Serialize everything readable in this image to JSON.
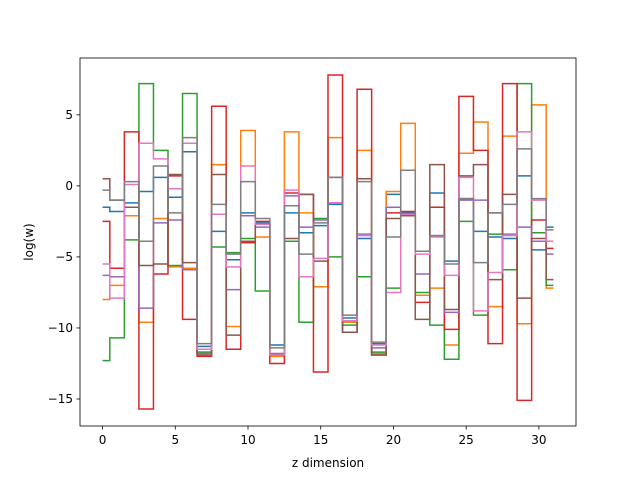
{
  "chart_data": {
    "type": "line",
    "drawstyle": "steps-mid",
    "title": "",
    "xlabel": "z dimension",
    "ylabel": "log(w)",
    "xlim": [
      -1.55,
      32.55
    ],
    "ylim": [
      -16.9,
      9.0
    ],
    "xticks": [
      0,
      5,
      10,
      15,
      20,
      25,
      30
    ],
    "yticks": [
      -15,
      -10,
      -5,
      0,
      5
    ],
    "grid": false,
    "x": [
      0,
      1,
      2,
      3,
      4,
      5,
      6,
      7,
      8,
      9,
      10,
      11,
      12,
      13,
      14,
      15,
      16,
      17,
      18,
      19,
      20,
      21,
      22,
      23,
      24,
      25,
      26,
      27,
      28,
      29,
      30,
      31
    ],
    "series": [
      {
        "color": "#1f77b4",
        "values": [
          -1.5,
          -1.8,
          -1.2,
          -0.4,
          0.6,
          -0.8,
          2.4,
          -11.3,
          -3.2,
          -5.2,
          -1.9,
          -2.6,
          -11.2,
          -1.9,
          -3.3,
          -2.8,
          -1.3,
          -9.3,
          -3.7,
          -11.1,
          -0.6,
          -1.9,
          -4.6,
          -0.5,
          -5.3,
          -0.9,
          -3.2,
          -3.6,
          -3.7,
          0.7,
          -4.5,
          -2.9
        ]
      },
      {
        "color": "#ff7f0e",
        "values": [
          -8.0,
          -7.0,
          -2.1,
          -9.6,
          -2.3,
          -5.7,
          -5.8,
          -11.7,
          1.5,
          -9.9,
          3.9,
          -3.6,
          -12.0,
          3.8,
          -1.9,
          -7.1,
          3.4,
          -9.6,
          2.5,
          -11.8,
          -0.4,
          4.4,
          -7.7,
          -7.2,
          -11.2,
          2.3,
          4.5,
          -8.5,
          3.5,
          -9.7,
          5.7,
          -7.2
        ]
      },
      {
        "color": "#2ca02c",
        "values": [
          -12.3,
          -10.7,
          -3.8,
          7.2,
          2.5,
          -5.6,
          6.5,
          -11.7,
          -4.3,
          -4.7,
          -3.7,
          -7.4,
          -11.9,
          -3.9,
          -9.6,
          -2.3,
          -5.0,
          -9.8,
          -6.4,
          -11.7,
          -7.2,
          -2.1,
          -7.5,
          -9.8,
          -12.2,
          -2.5,
          -9.1,
          -3.4,
          -5.9,
          7.2,
          -3.3,
          -7.0
        ]
      },
      {
        "color": "#d62728",
        "values": [
          -2.5,
          -5.8,
          3.8,
          -15.7,
          -6.2,
          0.7,
          -9.4,
          -12.0,
          5.6,
          -11.5,
          -4.0,
          -2.5,
          -12.5,
          -0.5,
          -0.6,
          -13.1,
          7.8,
          -10.3,
          6.8,
          -11.9,
          -1.9,
          -1.8,
          -8.2,
          -1.5,
          -10.1,
          6.3,
          2.5,
          -11.1,
          7.2,
          -15.1,
          -2.4,
          -4.4
        ]
      },
      {
        "color": "#9467bd",
        "values": [
          -6.3,
          -6.4,
          -1.5,
          -8.6,
          -2.6,
          -2.4,
          -5.9,
          -11.8,
          -2.0,
          -7.3,
          -2.1,
          -2.9,
          -11.8,
          -0.7,
          -2.9,
          -2.4,
          -1.2,
          -9.5,
          -3.4,
          -11.4,
          -1.5,
          -2.0,
          -6.2,
          -3.5,
          -8.9,
          -1.0,
          -1.0,
          -1.9,
          -3.4,
          -2.9,
          -3.9,
          -4.8
        ]
      },
      {
        "color": "#8c564b",
        "values": [
          0.5,
          -1.0,
          -1.5,
          -5.6,
          -5.5,
          0.8,
          -5.4,
          -11.9,
          0.8,
          -10.5,
          -3.9,
          -2.7,
          -11.9,
          -3.7,
          -0.6,
          -5.3,
          0.6,
          -10.3,
          0.5,
          -11.9,
          -2.3,
          -2.1,
          -9.4,
          1.5,
          -8.7,
          0.7,
          1.5,
          -6.6,
          -0.6,
          -7.9,
          -3.7,
          -6.6
        ]
      },
      {
        "color": "#e377c2",
        "values": [
          -5.5,
          -7.9,
          0.1,
          3.0,
          1.9,
          -0.2,
          3.0,
          -11.5,
          -2.0,
          -5.7,
          1.4,
          -2.7,
          -11.9,
          -0.3,
          -6.4,
          -5.1,
          -1.2,
          -9.5,
          -3.5,
          -11.2,
          -7.5,
          -2.0,
          -4.8,
          -3.6,
          -6.3,
          0.6,
          -8.8,
          -6.1,
          -3.5,
          3.8,
          -1.0,
          -3.9
        ]
      },
      {
        "color": "#7f7f7f",
        "values": [
          -0.3,
          -1.0,
          0.3,
          -3.9,
          1.4,
          -1.9,
          3.4,
          -11.1,
          -1.3,
          -4.8,
          0.3,
          -2.3,
          -11.4,
          -1.4,
          -4.8,
          -2.6,
          0.6,
          -9.1,
          0.3,
          -11.0,
          -3.6,
          1.1,
          -4.6,
          -3.5,
          -5.5,
          -0.9,
          -5.4,
          -1.9,
          -1.3,
          2.6,
          -0.9,
          -3.1
        ]
      }
    ]
  }
}
